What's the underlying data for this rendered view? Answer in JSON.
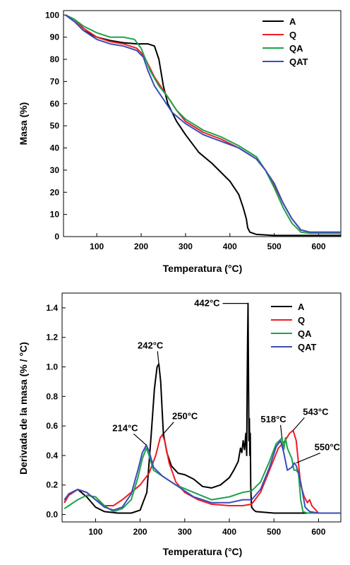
{
  "chart_data": [
    {
      "type": "line",
      "xlabel": "Temperatura (°C)",
      "ylabel": "Masa (%)",
      "xlim": [
        25,
        650
      ],
      "ylim": [
        0,
        102
      ],
      "xticks": [
        100,
        200,
        300,
        400,
        500,
        600
      ],
      "yticks": [
        0,
        10,
        20,
        30,
        40,
        50,
        60,
        70,
        80,
        90,
        100
      ],
      "legend_position": "top-right",
      "series": [
        {
          "name": "A",
          "color": "#000000",
          "x": [
            30,
            50,
            70,
            100,
            130,
            160,
            190,
            215,
            230,
            240,
            250,
            260,
            280,
            300,
            330,
            360,
            400,
            420,
            430,
            437,
            440,
            445,
            460,
            500,
            550,
            600,
            650
          ],
          "y": [
            100,
            97,
            93,
            90,
            88.5,
            87.5,
            87,
            87,
            86,
            80,
            68,
            60,
            52,
            46,
            38,
            33,
            25,
            19,
            13,
            8,
            4,
            2,
            1,
            0.5,
            0.5,
            0.5,
            0.5
          ]
        },
        {
          "name": "Q",
          "color": "#ee1c24",
          "x": [
            30,
            50,
            70,
            100,
            130,
            160,
            190,
            200,
            210,
            220,
            230,
            240,
            250,
            260,
            280,
            300,
            340,
            380,
            420,
            460,
            480,
            500,
            520,
            540,
            560,
            580,
            650
          ],
          "y": [
            100,
            98,
            94,
            90,
            88,
            87,
            85,
            83,
            80,
            76,
            72,
            69,
            66,
            63,
            57,
            52,
            47,
            44,
            40,
            35,
            30,
            23,
            15,
            8,
            3,
            2,
            2
          ]
        },
        {
          "name": "QA",
          "color": "#1ca34a",
          "x": [
            30,
            50,
            70,
            100,
            130,
            160,
            185,
            200,
            210,
            220,
            240,
            260,
            280,
            300,
            340,
            380,
            420,
            460,
            480,
            500,
            520,
            540,
            560,
            580,
            650
          ],
          "y": [
            100,
            98,
            95,
            92,
            90,
            90,
            89,
            85,
            80,
            75,
            68,
            63,
            57,
            53,
            48,
            45,
            41,
            36,
            30,
            22,
            13,
            6,
            2,
            1.5,
            1.5
          ]
        },
        {
          "name": "QAT",
          "color": "#3b4cb8",
          "x": [
            30,
            50,
            70,
            100,
            130,
            160,
            190,
            205,
            215,
            230,
            250,
            270,
            300,
            340,
            380,
            420,
            460,
            480,
            500,
            520,
            540,
            560,
            580,
            650
          ],
          "y": [
            100,
            97,
            93,
            89,
            87,
            86,
            84,
            81,
            75,
            68,
            62,
            56,
            51,
            46,
            43,
            40,
            35,
            30,
            24,
            15,
            8,
            3,
            2,
            2
          ]
        }
      ]
    },
    {
      "type": "line",
      "xlabel": "Temperatura (°C)",
      "ylabel": "Derivada de la masa (% / °C)",
      "xlim": [
        25,
        650
      ],
      "ylim": [
        -0.05,
        1.5
      ],
      "xticks": [
        100,
        200,
        300,
        400,
        500,
        600
      ],
      "yticks": [
        0.0,
        0.2,
        0.4,
        0.6,
        0.8,
        1.0,
        1.2,
        1.4
      ],
      "legend_position": "top-right",
      "annotations": [
        {
          "text": "442°C",
          "x": 442,
          "y": 1.43,
          "dir": "left"
        },
        {
          "text": "242°C",
          "x": 242,
          "y": 1.02,
          "dir": "above"
        },
        {
          "text": "250°C",
          "x": 250,
          "y": 0.54,
          "dir": "above-right"
        },
        {
          "text": "214°C",
          "x": 214,
          "y": 0.47,
          "dir": "above-left"
        },
        {
          "text": "518°C",
          "x": 518,
          "y": 0.52,
          "dir": "above"
        },
        {
          "text": "543°C",
          "x": 543,
          "y": 0.57,
          "dir": "above-right"
        },
        {
          "text": "550°C",
          "x": 550,
          "y": 0.35,
          "dir": "right"
        }
      ],
      "series": [
        {
          "name": "A",
          "color": "#000000",
          "x": [
            30,
            40,
            60,
            80,
            100,
            120,
            150,
            180,
            200,
            215,
            225,
            232,
            238,
            242,
            246,
            252,
            260,
            270,
            285,
            300,
            320,
            340,
            360,
            380,
            400,
            410,
            420,
            425,
            428,
            431,
            434,
            437,
            439,
            440,
            441,
            442,
            443,
            444,
            445,
            446,
            447,
            448,
            449,
            450,
            455,
            460,
            500,
            550,
            600,
            650
          ],
          "y": [
            0.08,
            0.14,
            0.17,
            0.12,
            0.05,
            0.02,
            0.01,
            0.01,
            0.03,
            0.15,
            0.55,
            0.85,
            1.0,
            1.02,
            0.9,
            0.55,
            0.42,
            0.33,
            0.28,
            0.27,
            0.24,
            0.19,
            0.18,
            0.2,
            0.25,
            0.3,
            0.36,
            0.45,
            0.42,
            0.5,
            0.44,
            0.55,
            0.4,
            0.9,
            1.2,
            1.43,
            0.9,
            0.5,
            0.65,
            0.4,
            0.55,
            0.2,
            0.1,
            0.05,
            0.03,
            0.02,
            0.01,
            0.01,
            0.01,
            0.01
          ]
        },
        {
          "name": "Q",
          "color": "#ee1c24",
          "x": [
            30,
            40,
            60,
            80,
            100,
            120,
            140,
            160,
            180,
            200,
            220,
            235,
            245,
            250,
            255,
            265,
            280,
            300,
            330,
            360,
            400,
            430,
            450,
            470,
            490,
            510,
            525,
            535,
            543,
            550,
            560,
            568,
            575,
            580,
            585,
            600,
            650
          ],
          "y": [
            0.08,
            0.13,
            0.17,
            0.15,
            0.1,
            0.06,
            0.06,
            0.1,
            0.15,
            0.2,
            0.28,
            0.4,
            0.52,
            0.54,
            0.5,
            0.35,
            0.22,
            0.15,
            0.1,
            0.07,
            0.06,
            0.06,
            0.07,
            0.15,
            0.3,
            0.45,
            0.5,
            0.55,
            0.57,
            0.5,
            0.2,
            0.12,
            0.08,
            0.1,
            0.06,
            0.01,
            0.01
          ]
        },
        {
          "name": "QA",
          "color": "#1ca34a",
          "x": [
            30,
            40,
            60,
            80,
            100,
            120,
            140,
            160,
            180,
            195,
            205,
            214,
            220,
            230,
            250,
            280,
            320,
            360,
            400,
            430,
            450,
            470,
            490,
            505,
            512,
            518,
            522,
            526,
            530,
            540,
            545,
            550,
            555,
            560,
            565,
            575,
            600,
            650
          ],
          "y": [
            0.04,
            0.06,
            0.1,
            0.13,
            0.12,
            0.06,
            0.02,
            0.04,
            0.1,
            0.25,
            0.38,
            0.45,
            0.4,
            0.3,
            0.26,
            0.2,
            0.15,
            0.1,
            0.12,
            0.15,
            0.16,
            0.22,
            0.36,
            0.48,
            0.5,
            0.52,
            0.44,
            0.52,
            0.45,
            0.38,
            0.3,
            0.3,
            0.28,
            0.1,
            0.02,
            0.01,
            0.01,
            0.01
          ]
        },
        {
          "name": "QAT",
          "color": "#3b4cb8",
          "x": [
            30,
            40,
            60,
            80,
            100,
            120,
            140,
            160,
            180,
            195,
            205,
            214,
            220,
            230,
            250,
            280,
            320,
            360,
            400,
            430,
            450,
            470,
            490,
            505,
            515,
            522,
            530,
            540,
            546,
            550,
            555,
            560,
            570,
            580,
            600,
            650
          ],
          "y": [
            0.1,
            0.14,
            0.17,
            0.15,
            0.1,
            0.05,
            0.03,
            0.05,
            0.14,
            0.3,
            0.42,
            0.47,
            0.43,
            0.32,
            0.26,
            0.2,
            0.12,
            0.08,
            0.08,
            0.1,
            0.1,
            0.17,
            0.32,
            0.46,
            0.5,
            0.42,
            0.3,
            0.32,
            0.35,
            0.33,
            0.28,
            0.22,
            0.05,
            0.02,
            0.01,
            0.01
          ]
        }
      ]
    }
  ]
}
